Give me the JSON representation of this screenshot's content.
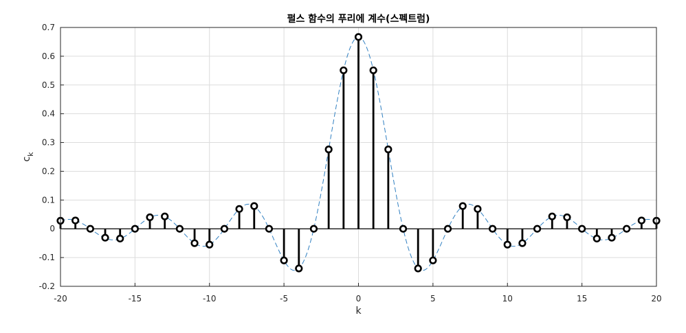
{
  "chart_data": {
    "type": "stem",
    "title": "펄스 함수의 푸리에 계수(스펙트럼)",
    "xlabel": "k",
    "ylabel": "c",
    "ylabel_sub": "k",
    "xlim": [
      -20,
      20
    ],
    "ylim": [
      -0.2,
      0.7
    ],
    "xticks": [
      -20,
      -15,
      -10,
      -5,
      0,
      5,
      10,
      15,
      20
    ],
    "xtick_labels": [
      "-20",
      "-15",
      "-10",
      "-5",
      "0",
      "5",
      "10",
      "15",
      "20"
    ],
    "yticks": [
      -0.2,
      -0.1,
      0,
      0.1,
      0.2,
      0.3,
      0.4,
      0.5,
      0.6,
      0.7
    ],
    "ytick_labels": [
      "-0.2",
      "-0.1",
      "0",
      "0.1",
      "0.2",
      "0.3",
      "0.4",
      "0.5",
      "0.6",
      "0.7"
    ],
    "grid": true,
    "stem_color": "#000000",
    "envelope_color": "#2f7fc1",
    "envelope_style": "dashed",
    "k": [
      -20,
      -19,
      -18,
      -17,
      -16,
      -15,
      -14,
      -13,
      -12,
      -11,
      -10,
      -9,
      -8,
      -7,
      -6,
      -5,
      -4,
      -3,
      -2,
      -1,
      0,
      1,
      2,
      3,
      4,
      5,
      6,
      7,
      8,
      9,
      10,
      11,
      12,
      13,
      14,
      15,
      16,
      17,
      18,
      19,
      20
    ],
    "ck": [
      0.028,
      0.029,
      0,
      -0.031,
      -0.034,
      0,
      0.04,
      0.043,
      0,
      -0.05,
      -0.055,
      0,
      0.069,
      0.079,
      0,
      -0.11,
      -0.138,
      0,
      0.276,
      0.551,
      0.667,
      0.551,
      0.276,
      0,
      -0.138,
      -0.11,
      0,
      0.079,
      0.069,
      0,
      -0.055,
      -0.05,
      0,
      0.043,
      0.04,
      0,
      -0.034,
      -0.031,
      0,
      0.029,
      0.028
    ]
  }
}
